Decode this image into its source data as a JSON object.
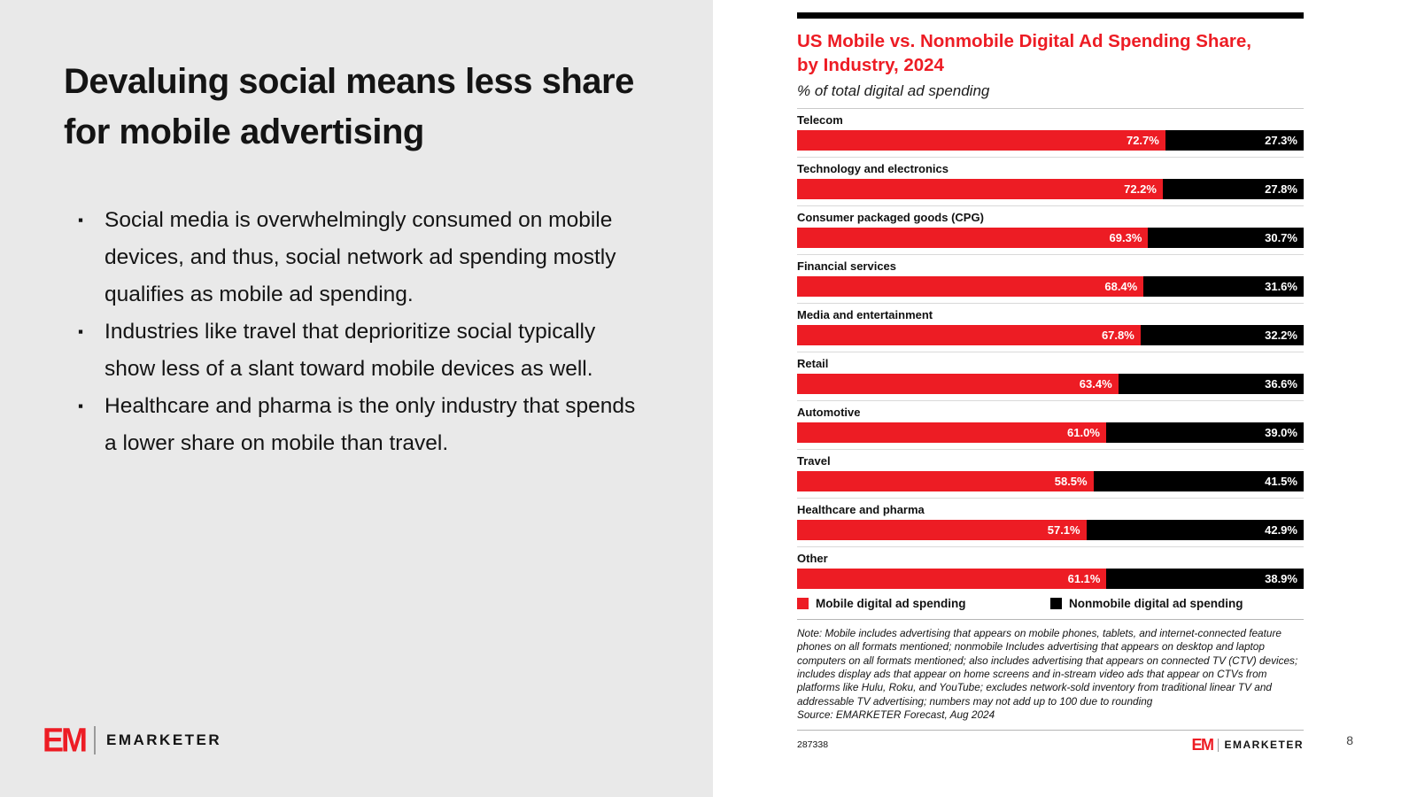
{
  "slide": {
    "title": "Devaluing social means less share for mobile advertising",
    "bullet_marker": "▪",
    "bullets": [
      "Social media is overwhelmingly consumed on mobile devices, and thus, social network ad spending mostly qualifies as mobile ad spending.",
      "Industries like travel that deprioritize social typically show less of a slant toward mobile devices as well.",
      "Healthcare and pharma is the only industry that spends a lower share on mobile than travel."
    ],
    "page_number": "8"
  },
  "brand": {
    "logo_short": "EM",
    "name": "EMARKETER",
    "accent_color": "#ed1c24"
  },
  "chart": {
    "title": "US Mobile vs. Nonmobile Digital Ad Spending Share, by Industry, 2024",
    "subtitle": "% of total digital ad spending",
    "note": "Note: Mobile includes advertising that appears on mobile phones, tablets, and internet-connected feature phones on all formats mentioned; nonmobile Includes advertising that appears on desktop and laptop computers on all formats mentioned; also includes advertising that appears on connected TV (CTV) devices; includes display ads that appear on home screens and in-stream video ads that appear on CTVs from platforms like Hulu, Roku, and YouTube; excludes network-sold inventory from traditional linear TV and addressable TV advertising; numbers may not add up to 100 due to rounding",
    "source": "Source: EMARKETER Forecast, Aug 2024",
    "id": "287338",
    "footer_logo_short": "EM",
    "footer_logo_name": "EMARKETER"
  },
  "chart_data": {
    "type": "bar",
    "orientation": "horizontal_stacked",
    "unit": "%",
    "xlim": [
      0,
      100
    ],
    "value_label_format": "one_decimal_percent",
    "legend_position": "bottom",
    "grid": false,
    "categories": [
      "Telecom",
      "Technology and electronics",
      "Consumer packaged goods (CPG)",
      "Financial services",
      "Media and entertainment",
      "Retail",
      "Automotive",
      "Travel",
      "Healthcare and pharma",
      "Other"
    ],
    "series": [
      {
        "name": "Mobile digital ad spending",
        "color": "#ed1c24",
        "values": [
          72.7,
          72.2,
          69.3,
          68.4,
          67.8,
          63.4,
          61.0,
          58.5,
          57.1,
          61.1
        ]
      },
      {
        "name": "Nonmobile digital ad spending",
        "color": "#000000",
        "values": [
          27.3,
          27.8,
          30.7,
          31.6,
          32.2,
          36.6,
          39.0,
          41.5,
          42.9,
          38.9
        ]
      }
    ]
  }
}
